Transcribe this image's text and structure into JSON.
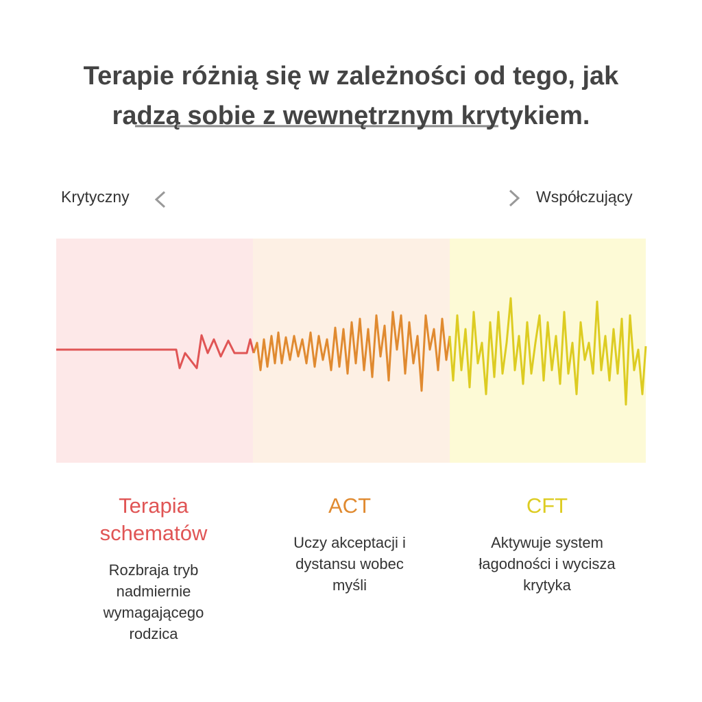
{
  "header": {
    "title_lines": [
      "Terapie różnią się w zależności od tego, jak",
      "radzą sobie z wewnętrznym krytykiem."
    ]
  },
  "scale": {
    "left_label": "Krytyczny",
    "right_label": "Współczujący"
  },
  "sections": [
    {
      "name_lines": [
        "Terapia",
        "schematów"
      ],
      "color": "#e05555",
      "description_lines": [
        "Rozbraja tryb",
        "nadmiernie",
        "wymagającego",
        "rodzica"
      ]
    },
    {
      "name_lines": [
        "ACT"
      ],
      "color": "#e08a30",
      "description_lines": [
        "Uczy akceptacji i",
        "dystansu wobec",
        "myśli"
      ]
    },
    {
      "name_lines": [
        "CFT"
      ],
      "color": "#ddcc22",
      "description_lines": [
        "Aktywuje system",
        "łagodności i wycisza",
        "krytyka"
      ]
    }
  ]
}
